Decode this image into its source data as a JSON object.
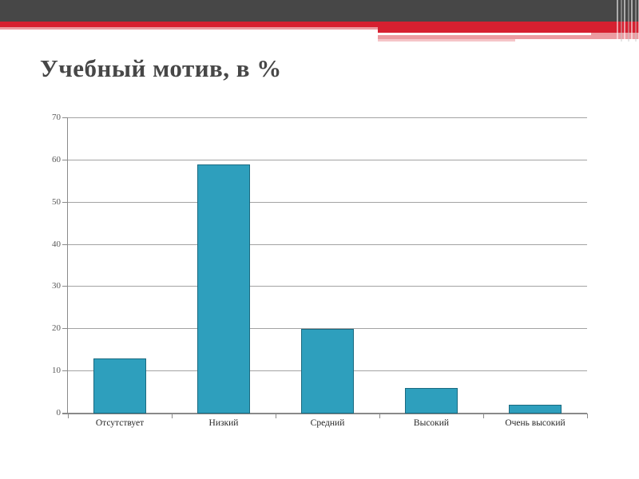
{
  "slide": {
    "title": "Учебный мотив, в %"
  },
  "theme": {
    "header_dark": "#474747",
    "header_red": "#D62030",
    "header_pink": "#EC9BA1",
    "header_pink_light": "#F5C5C8"
  },
  "chart_data": {
    "type": "bar",
    "categories": [
      "Отсутствует",
      "Низкий",
      "Средний",
      "Высокий",
      "Очень высокий"
    ],
    "values": [
      13,
      59,
      20,
      6,
      2
    ],
    "title": "Учебный мотив, в %",
    "xlabel": "",
    "ylabel": "",
    "ylim": [
      0,
      70
    ],
    "ytick_step": 10,
    "yticks": [
      0,
      10,
      20,
      30,
      40,
      50,
      60,
      70
    ],
    "grid": true,
    "legend": "none",
    "bar_color": "#2E9FBD",
    "bar_border_color": "#1A6A80",
    "gridline_color": "#A3A3A3",
    "axis_color": "#8A8A8A",
    "tick_label_color": "#595959",
    "category_label_color": "#262626"
  }
}
